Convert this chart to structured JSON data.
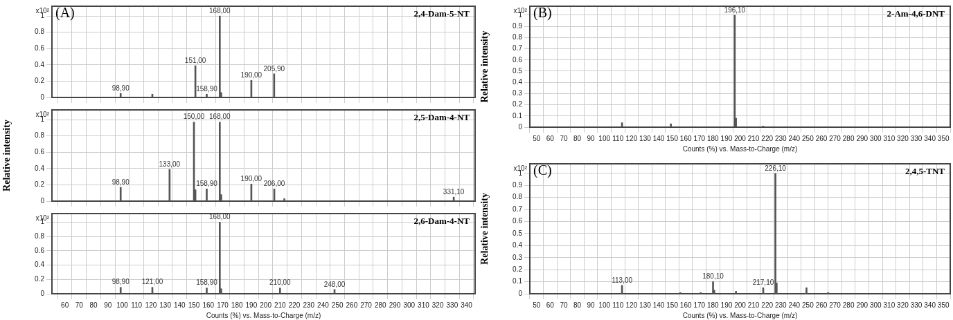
{
  "chart_data": [
    {
      "type": "bar",
      "title": "2,4-Dam-5-NT",
      "subtitle": "(A)",
      "color": "#555555",
      "x": [
        98.9,
        121,
        151,
        158.9,
        168,
        169,
        190,
        205.9
      ],
      "values": [
        0.05,
        0.04,
        0.39,
        0.04,
        1,
        0.06,
        0.21,
        0.29
      ],
      "xlim": [
        51,
        346
      ],
      "xticks": [
        60,
        70,
        80,
        90,
        100,
        110,
        120,
        130,
        140,
        150,
        160,
        170,
        180,
        190,
        200,
        210,
        220,
        230,
        240,
        250,
        260,
        270,
        280,
        290,
        300,
        310,
        320,
        330,
        340
      ],
      "ylim": [
        0,
        1.12
      ],
      "yticks": [
        0,
        0.2,
        0.4,
        0.6,
        0.8,
        1
      ],
      "grid": true,
      "tick_labels": "y",
      "annotations": [
        "x10²",
        {
          "text": "98,90",
          "x": 98.9,
          "y": 0.05
        },
        {
          "text": "151,00",
          "x": 151,
          "y": 0.39
        },
        {
          "text": "158,90",
          "x": 158.9,
          "y": 0.04
        },
        {
          "text": "168,00",
          "x": 168,
          "y": 1
        },
        {
          "text": "190,00",
          "x": 190,
          "y": 0.21
        },
        {
          "text": "205,90",
          "x": 205.9,
          "y": 0.29
        }
      ]
    },
    {
      "type": "bar",
      "title": "2,5-Dam-4-NT",
      "ylabel": "Relative intensity",
      "color": "#555555",
      "x": [
        98.9,
        133,
        150,
        151,
        158.9,
        168,
        169,
        190,
        206,
        213,
        331.1
      ],
      "values": [
        0.17,
        0.39,
        0.97,
        0.14,
        0.15,
        0.97,
        0.08,
        0.21,
        0.15,
        0.03,
        0.05
      ],
      "xlim": [
        51,
        346
      ],
      "xticks": [
        60,
        70,
        80,
        90,
        100,
        110,
        120,
        130,
        140,
        150,
        160,
        170,
        180,
        190,
        200,
        210,
        220,
        230,
        240,
        250,
        260,
        270,
        280,
        290,
        300,
        310,
        320,
        330,
        340
      ],
      "ylim": [
        0,
        1.12
      ],
      "yticks": [
        0,
        0.2,
        0.4,
        0.6,
        0.8,
        1
      ],
      "grid": true,
      "tick_labels": "y",
      "annotations": [
        "x10²",
        {
          "text": "98,90",
          "x": 98.9,
          "y": 0.17
        },
        {
          "text": "133,00",
          "x": 133,
          "y": 0.39
        },
        {
          "text": "150,00",
          "x": 150,
          "y": 0.97
        },
        {
          "text": "158,90",
          "x": 158.9,
          "y": 0.15
        },
        {
          "text": "168,00",
          "x": 168,
          "y": 0.97
        },
        {
          "text": "190,00",
          "x": 190,
          "y": 0.21
        },
        {
          "text": "206,00",
          "x": 206,
          "y": 0.15
        },
        {
          "text": "331,10",
          "x": 331.1,
          "y": 0.05
        }
      ]
    },
    {
      "type": "bar",
      "title": "2,6-Dam-4-NT",
      "xlabel": "Counts (%) vs. Mass-to-Charge (m/z)",
      "color": "#555555",
      "x": [
        98.9,
        121,
        158.9,
        168,
        169,
        210,
        248
      ],
      "values": [
        0.09,
        0.09,
        0.08,
        1,
        0.07,
        0.08,
        0.06
      ],
      "xlim": [
        51,
        346
      ],
      "xticks": [
        60,
        70,
        80,
        90,
        100,
        110,
        120,
        130,
        140,
        150,
        160,
        170,
        180,
        190,
        200,
        210,
        220,
        230,
        240,
        250,
        260,
        270,
        280,
        290,
        300,
        310,
        320,
        330,
        340
      ],
      "ylim": [
        0,
        1.12
      ],
      "yticks": [
        0,
        0.2,
        0.4,
        0.6,
        0.8,
        1
      ],
      "grid": true,
      "annotations": [
        "x10²",
        {
          "text": "98,90",
          "x": 98.9,
          "y": 0.09
        },
        {
          "text": "121,00",
          "x": 121,
          "y": 0.09
        },
        {
          "text": "158,90",
          "x": 158.9,
          "y": 0.08
        },
        {
          "text": "168,00",
          "x": 168,
          "y": 1
        },
        {
          "text": "210,00",
          "x": 210,
          "y": 0.08
        },
        {
          "text": "248,00",
          "x": 248,
          "y": 0.06
        }
      ]
    },
    {
      "type": "bar",
      "title": "2-Am-4,6-DNT",
      "subtitle": "(B)",
      "ylabel": "Relative intensity",
      "xlabel": "Counts (%) vs. Mass-to-Charge (m/z)",
      "color": "#555555",
      "x": [
        113,
        149,
        196.1,
        197,
        217
      ],
      "values": [
        0.04,
        0.03,
        1,
        0.08,
        0.01
      ],
      "xlim": [
        45,
        355
      ],
      "xticks": [
        50,
        60,
        70,
        80,
        90,
        100,
        110,
        120,
        130,
        140,
        150,
        160,
        170,
        180,
        190,
        200,
        210,
        220,
        230,
        240,
        250,
        260,
        270,
        280,
        290,
        300,
        310,
        320,
        330,
        340,
        350
      ],
      "ylim": [
        0,
        1.08
      ],
      "yticks": [
        0,
        0.1,
        0.2,
        0.3,
        0.4,
        0.5,
        0.6,
        0.7,
        0.8,
        0.9,
        1
      ],
      "grid": true,
      "annotations": [
        "x10²",
        {
          "text": "196,10",
          "x": 196.1,
          "y": 1
        }
      ]
    },
    {
      "type": "bar",
      "title": "2,4,5-TNT",
      "subtitle": "(C)",
      "ylabel": "Relative intensity",
      "xlabel": "Counts (%) vs. Mass-to-Charge (m/z)",
      "color": "#555555",
      "x": [
        113,
        156,
        171,
        180.1,
        181,
        197,
        217.1,
        226.1,
        227,
        249,
        265
      ],
      "values": [
        0.07,
        0.01,
        0.01,
        0.1,
        0.03,
        0.02,
        0.05,
        1,
        0.09,
        0.05,
        0.01
      ],
      "xlim": [
        45,
        355
      ],
      "xticks": [
        50,
        60,
        70,
        80,
        90,
        100,
        110,
        120,
        130,
        140,
        150,
        160,
        170,
        180,
        190,
        200,
        210,
        220,
        230,
        240,
        250,
        260,
        270,
        280,
        290,
        300,
        310,
        320,
        330,
        340,
        350
      ],
      "ylim": [
        0,
        1.08
      ],
      "yticks": [
        0,
        0.1,
        0.2,
        0.3,
        0.4,
        0.5,
        0.6,
        0.7,
        0.8,
        0.9,
        1
      ],
      "grid": true,
      "annotations": [
        "x10²",
        {
          "text": "113,00",
          "x": 113,
          "y": 0.07
        },
        {
          "text": "180,10",
          "x": 180.1,
          "y": 0.1
        },
        {
          "text": "217,10",
          "x": 217.1,
          "y": 0.05
        },
        {
          "text": "226,10",
          "x": 226.1,
          "y": 1
        }
      ]
    }
  ]
}
